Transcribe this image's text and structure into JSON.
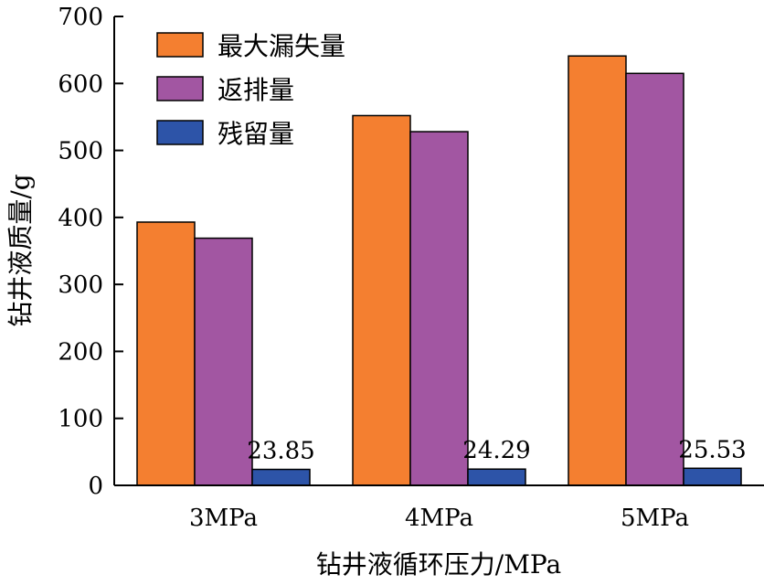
{
  "chart_data": {
    "type": "bar",
    "categories": [
      "3MPa",
      "4MPa",
      "5MPa"
    ],
    "series": [
      {
        "name": "最大漏失量",
        "color": "#f47f30",
        "values": [
          393,
          552,
          641
        ]
      },
      {
        "name": "返排量",
        "color": "#a256a2",
        "values": [
          369,
          528,
          615
        ]
      },
      {
        "name": "残留量",
        "color": "#2d54a8",
        "values": [
          23.85,
          24.29,
          25.53
        ]
      }
    ],
    "data_labels": [
      "23.85",
      "24.29",
      "25.53"
    ],
    "xlabel": "钻井液循环压力/MPa",
    "ylabel": "钻井液质量/g",
    "ylim": [
      0,
      700
    ],
    "yticks": [
      0,
      100,
      200,
      300,
      400,
      500,
      600,
      700
    ],
    "grid": false,
    "legend_position": "top-left"
  }
}
